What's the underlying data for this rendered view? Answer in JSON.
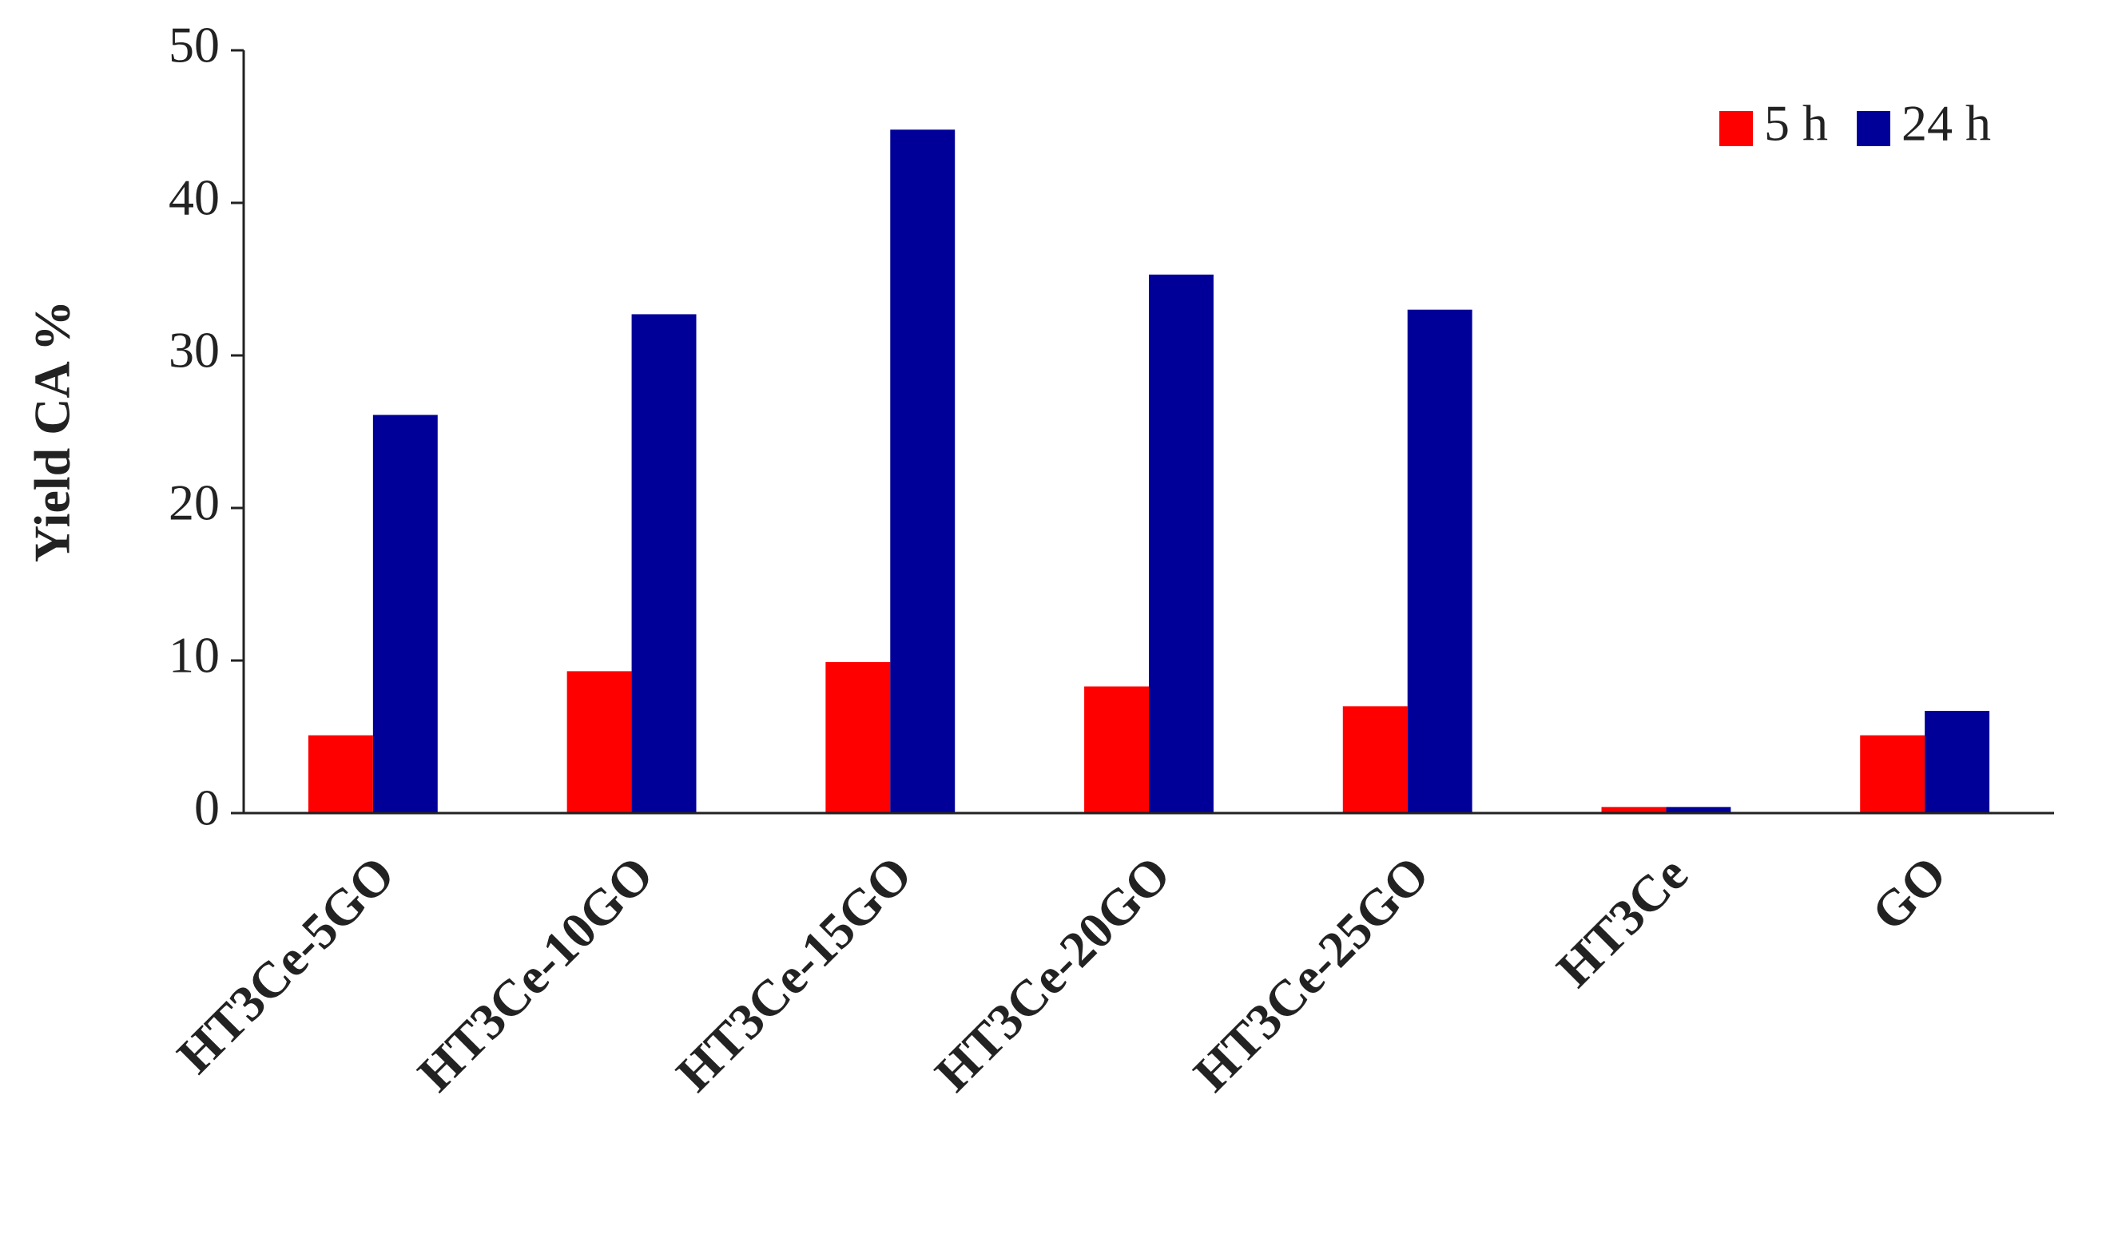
{
  "chart_data": {
    "type": "bar",
    "y_label": "Yield CA %",
    "categories": [
      "HT3Ce-5GO",
      "HT3Ce-10GO",
      "HT3Ce-15GO",
      "HT3Ce-20GO",
      "HT3Ce-25GO",
      "HT3Ce",
      "GO"
    ],
    "series": [
      {
        "name": "5 h",
        "color": "#ff0000",
        "values": [
          5.1,
          9.3,
          9.9,
          8.3,
          7.0,
          0.4,
          5.1
        ]
      },
      {
        "name": "24 h",
        "color": "#000099",
        "values": [
          26.1,
          32.7,
          44.8,
          35.3,
          33.0,
          0.4,
          6.7
        ]
      }
    ],
    "ylim": [
      0,
      50
    ],
    "yticks": [
      0,
      10,
      20,
      30,
      40,
      50
    ],
    "grid": false,
    "legend": "upper right"
  }
}
